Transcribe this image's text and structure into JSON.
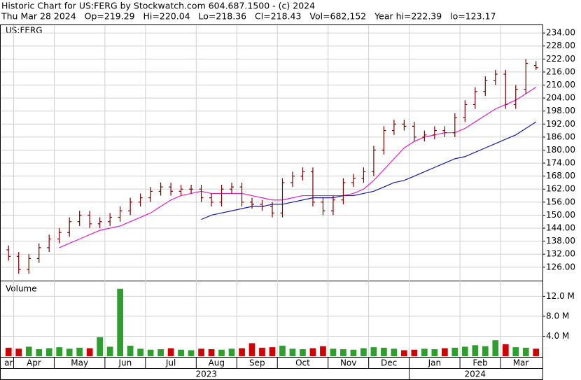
{
  "chart_data": {
    "type": "ohlc",
    "title": "Historic Chart for US:FERG by Stockwatch.com 604.687.1500 - (c) 2024",
    "subtitle": "Thu Mar 28 2024   Op=219.29   Hi=220.04   Lo=218.36   Cl=218.43   Vol=682,152   Year hi=222.39   lo=123.17",
    "symbol": "US:FERG",
    "volume_title": "Volume",
    "categories": [
      "ar",
      "Apr",
      null,
      null,
      null,
      "May",
      null,
      null,
      null,
      null,
      "Jun",
      null,
      null,
      null,
      "Jul",
      null,
      null,
      null,
      null,
      "Aug",
      null,
      null,
      null,
      "Sep",
      null,
      null,
      null,
      "Oct",
      null,
      null,
      null,
      null,
      "Nov",
      null,
      null,
      null,
      "Dec",
      null,
      null,
      null,
      "Jan",
      null,
      null,
      null,
      null,
      "Feb",
      null,
      null,
      null,
      "Mar",
      null,
      null,
      null
    ],
    "years": [
      "2023",
      null,
      null,
      null,
      null,
      null,
      null,
      null,
      null,
      null,
      null,
      null,
      null,
      null,
      null,
      null,
      null,
      null,
      null,
      null,
      null,
      null,
      null,
      null,
      null,
      null,
      null,
      null,
      null,
      null,
      null,
      null,
      null,
      null,
      null,
      null,
      null,
      null,
      null,
      null,
      "2024",
      null,
      null,
      null,
      null,
      null,
      null,
      null,
      null,
      null,
      null,
      null,
      null
    ],
    "open": [
      134,
      131,
      125,
      130,
      135,
      139,
      142,
      147,
      150,
      146,
      147,
      149,
      152,
      156,
      158,
      161,
      163,
      161,
      162,
      162,
      158,
      156,
      162,
      163,
      156,
      155,
      154,
      151,
      165,
      168,
      170,
      156,
      152,
      157,
      165,
      167,
      170,
      180,
      189,
      192,
      191,
      186,
      187,
      189,
      188,
      195,
      201,
      207,
      212,
      215,
      201,
      208,
      219
    ],
    "high": [
      136,
      133,
      132,
      137,
      141,
      144,
      149,
      152,
      152,
      149,
      151,
      154,
      158,
      160,
      163,
      165,
      165,
      164,
      164,
      164,
      160,
      164,
      165,
      165,
      158,
      157,
      156,
      167,
      170,
      172,
      172,
      158,
      159,
      167,
      169,
      172,
      182,
      191,
      194,
      194,
      193,
      189,
      191,
      191,
      197,
      203,
      209,
      214,
      217,
      217,
      210,
      222,
      221
    ],
    "low": [
      129,
      123,
      123,
      128,
      133,
      137,
      140,
      145,
      144,
      144,
      145,
      147,
      150,
      154,
      156,
      159,
      159,
      159,
      160,
      156,
      154,
      154,
      160,
      154,
      153,
      152,
      149,
      149,
      163,
      166,
      154,
      150,
      150,
      155,
      163,
      165,
      168,
      178,
      187,
      189,
      184,
      184,
      185,
      186,
      186,
      193,
      199,
      205,
      210,
      199,
      199,
      206,
      217
    ],
    "close": [
      131,
      125,
      130,
      135,
      139,
      142,
      147,
      150,
      146,
      147,
      149,
      152,
      156,
      158,
      161,
      163,
      161,
      162,
      162,
      158,
      156,
      162,
      163,
      156,
      155,
      154,
      151,
      165,
      168,
      170,
      156,
      152,
      157,
      165,
      167,
      170,
      180,
      189,
      192,
      191,
      186,
      187,
      189,
      188,
      195,
      201,
      207,
      212,
      215,
      201,
      208,
      220,
      218
    ],
    "bar_color": "#7a0000",
    "series": [
      {
        "color": "#e020c0",
        "values": [
          null,
          null,
          null,
          null,
          null,
          135,
          137,
          139,
          141,
          143,
          144,
          145,
          147,
          149,
          151,
          154,
          157,
          159,
          160,
          161,
          160,
          160,
          160,
          160,
          159,
          158,
          157,
          157,
          158,
          159,
          159,
          159,
          159,
          159,
          160,
          162,
          166,
          171,
          176,
          181,
          184,
          186,
          187,
          188,
          188,
          190,
          193,
          196,
          199,
          201,
          203,
          206,
          209
        ]
      },
      {
        "color": "#1a1aa0",
        "values": [
          null,
          null,
          null,
          null,
          null,
          null,
          null,
          null,
          null,
          null,
          null,
          null,
          null,
          null,
          null,
          null,
          null,
          null,
          null,
          148,
          150,
          151,
          152,
          153,
          154,
          154,
          155,
          155,
          156,
          157,
          158,
          158,
          158,
          159,
          159,
          160,
          161,
          163,
          165,
          166,
          168,
          170,
          172,
          174,
          176,
          177,
          179,
          181,
          183,
          185,
          187,
          190,
          193
        ]
      }
    ],
    "volume": [
      1700000,
      1500000,
      1900000,
      1400000,
      1600000,
      1800000,
      1500000,
      1700000,
      1600000,
      3800000,
      1900000,
      13500000,
      2100000,
      1500000,
      1300000,
      1400000,
      1600000,
      1300000,
      1200000,
      1500000,
      1400000,
      1300000,
      1500000,
      1600000,
      2600000,
      1700000,
      1800000,
      2100000,
      1500000,
      1400000,
      1600000,
      2000000,
      1500000,
      1400000,
      1300000,
      1600000,
      1800000,
      1700000,
      1500000,
      1200000,
      1300000,
      1500000,
      1400000,
      1600000,
      1700000,
      1900000,
      2200000,
      2000000,
      3200000,
      2400000,
      1800000,
      1700000,
      1500000
    ],
    "up_color": "#2e9e2e",
    "down_color": "#d00000",
    "ylim": [
      119.8,
      237.6
    ],
    "yticks": [
      {
        "value": 126,
        "label": "126.00"
      },
      {
        "value": 132,
        "label": "132.00"
      },
      {
        "value": 138,
        "label": "138.00"
      },
      {
        "value": 144,
        "label": "144.00"
      },
      {
        "value": 150,
        "label": "150.00"
      },
      {
        "value": 156,
        "label": "156.00"
      },
      {
        "value": 162,
        "label": "162.00"
      },
      {
        "value": 168,
        "label": "168.00"
      },
      {
        "value": 174,
        "label": "174.00"
      },
      {
        "value": 180,
        "label": "180.00"
      },
      {
        "value": 186,
        "label": "186.00"
      },
      {
        "value": 192,
        "label": "192.00"
      },
      {
        "value": 198,
        "label": "198.00"
      },
      {
        "value": 204,
        "label": "204.00"
      },
      {
        "value": 210,
        "label": "210.00"
      },
      {
        "value": 216,
        "label": "216.00"
      },
      {
        "value": 222,
        "label": "222.00"
      },
      {
        "value": 228,
        "label": "228.00"
      },
      {
        "value": 234,
        "label": "234.00"
      }
    ],
    "y2lim": [
      0,
      15000000
    ],
    "y2ticks": [
      {
        "value": 4000000,
        "label": "4.0 M"
      },
      {
        "value": 8000000,
        "label": "8.0 M"
      },
      {
        "value": 12000000,
        "label": "12.0 M"
      }
    ],
    "grid": true
  }
}
